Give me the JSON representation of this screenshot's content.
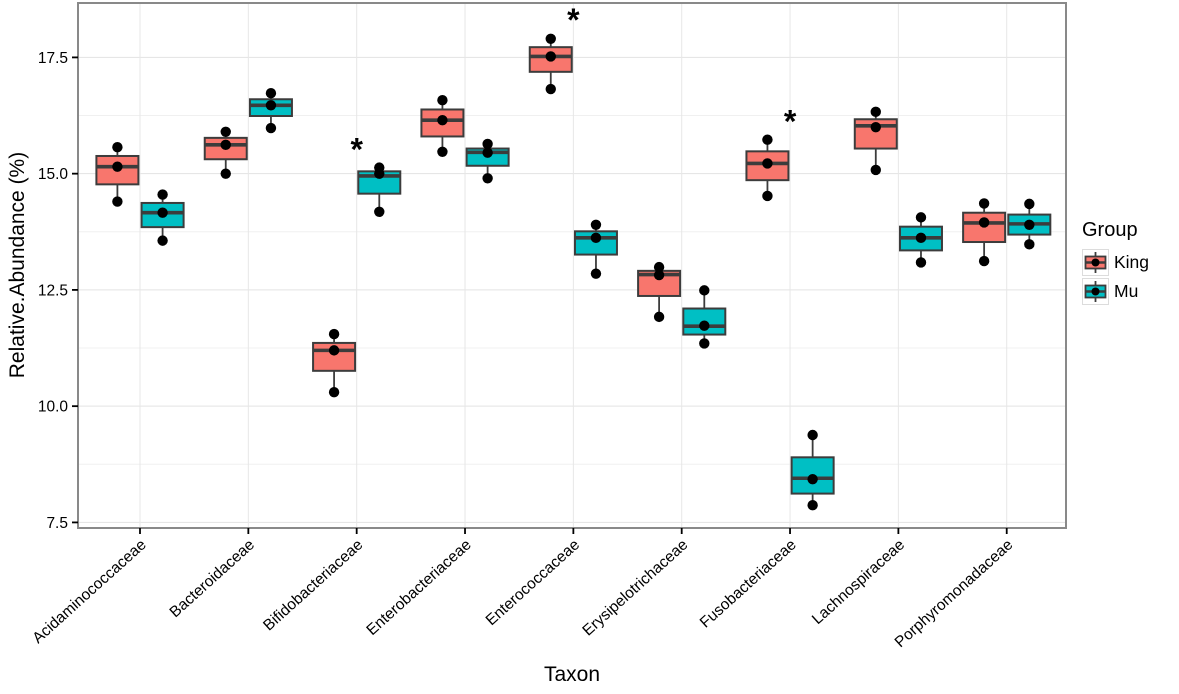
{
  "chart_data": {
    "type": "boxplot",
    "title": "",
    "xlabel": "Taxon",
    "ylabel": "Relative.Abundance (%)",
    "ylim": [
      7.38,
      18.67
    ],
    "ytick_values": [
      7.5,
      10.0,
      12.5,
      15.0,
      17.5
    ],
    "ytick_labels": [
      "7.5",
      "10.0",
      "12.5",
      "15.0",
      "17.5"
    ],
    "minor_gridlines": [
      8.75,
      11.25,
      13.75,
      16.25
    ],
    "grid": true,
    "legend_position": "right",
    "categories": [
      "Acidaminococcaceae",
      "Bacteroidaceae",
      "Bifidobacteriaceae",
      "Enterobacteriaceae",
      "Enterococcaceae",
      "Erysipelotrichaceae",
      "Fusobacteriaceae",
      "Lachnospiraceae",
      "Porphyromonadaceae"
    ],
    "legend": {
      "title": "Group",
      "entries": [
        {
          "label": "King",
          "color": "#F8766D"
        },
        {
          "label": "Mu",
          "color": "#00BFC4"
        }
      ]
    },
    "series": [
      {
        "name": "King",
        "color": "#F8766D",
        "boxes": [
          {
            "category": "Acidaminococcaceae",
            "min": 14.4,
            "q1": 14.77,
            "median": 15.15,
            "q3": 15.38,
            "max": 15.57,
            "points": [
              15.57,
              15.15,
              14.4
            ]
          },
          {
            "category": "Bacteroidaceae",
            "min": 15.0,
            "q1": 15.31,
            "median": 15.62,
            "q3": 15.77,
            "max": 15.9,
            "points": [
              15.9,
              15.62,
              15.0
            ]
          },
          {
            "category": "Bifidobacteriaceae",
            "min": 10.3,
            "q1": 10.76,
            "median": 11.2,
            "q3": 11.36,
            "max": 11.55,
            "points": [
              11.55,
              11.2,
              10.3
            ]
          },
          {
            "category": "Enterobacteriaceae",
            "min": 15.47,
            "q1": 15.8,
            "median": 16.15,
            "q3": 16.38,
            "max": 16.58,
            "points": [
              16.58,
              16.15,
              15.47
            ]
          },
          {
            "category": "Enterococcaceae",
            "min": 16.82,
            "q1": 17.19,
            "median": 17.52,
            "q3": 17.72,
            "max": 17.9,
            "points": [
              17.9,
              17.52,
              16.82
            ]
          },
          {
            "category": "Erysipelotrichaceae",
            "min": 11.92,
            "q1": 12.37,
            "median": 12.83,
            "q3": 12.91,
            "max": 12.99,
            "points": [
              12.99,
              12.82,
              11.92
            ]
          },
          {
            "category": "Fusobacteriaceae",
            "min": 14.52,
            "q1": 14.86,
            "median": 15.22,
            "q3": 15.48,
            "max": 15.73,
            "points": [
              15.73,
              15.22,
              14.52
            ]
          },
          {
            "category": "Lachnospiraceae",
            "min": 15.08,
            "q1": 15.54,
            "median": 16.03,
            "q3": 16.17,
            "max": 16.33,
            "points": [
              16.33,
              16.0,
              15.08
            ]
          },
          {
            "category": "Porphyromonadaceae",
            "min": 13.12,
            "q1": 13.53,
            "median": 13.94,
            "q3": 14.16,
            "max": 14.36,
            "points": [
              14.36,
              13.95,
              13.12
            ]
          }
        ]
      },
      {
        "name": "Mu",
        "color": "#00BFC4",
        "boxes": [
          {
            "category": "Acidaminococcaceae",
            "min": 13.56,
            "q1": 13.85,
            "median": 14.16,
            "q3": 14.37,
            "max": 14.55,
            "points": [
              14.55,
              14.16,
              13.56
            ]
          },
          {
            "category": "Bacteroidaceae",
            "min": 15.98,
            "q1": 16.24,
            "median": 16.47,
            "q3": 16.6,
            "max": 16.73,
            "points": [
              16.73,
              16.47,
              15.98
            ]
          },
          {
            "category": "Bifidobacteriaceae",
            "min": 14.18,
            "q1": 14.57,
            "median": 14.95,
            "q3": 15.05,
            "max": 15.15,
            "points": [
              15.13,
              15.0,
              14.18
            ]
          },
          {
            "category": "Enterobacteriaceae",
            "min": 14.9,
            "q1": 15.17,
            "median": 15.46,
            "q3": 15.54,
            "max": 15.64,
            "points": [
              15.64,
              15.45,
              14.9
            ]
          },
          {
            "category": "Enterococcaceae",
            "min": 12.85,
            "q1": 13.26,
            "median": 13.62,
            "q3": 13.76,
            "max": 13.9,
            "points": [
              13.9,
              13.62,
              12.85
            ]
          },
          {
            "category": "Erysipelotrichaceae",
            "min": 11.35,
            "q1": 11.54,
            "median": 11.72,
            "q3": 12.1,
            "max": 12.49,
            "points": [
              12.49,
              11.73,
              11.35
            ]
          },
          {
            "category": "Fusobacteriaceae",
            "min": 7.87,
            "q1": 8.12,
            "median": 8.45,
            "q3": 8.9,
            "max": 9.38,
            "points": [
              9.38,
              8.43,
              7.87
            ]
          },
          {
            "category": "Lachnospiraceae",
            "min": 13.09,
            "q1": 13.35,
            "median": 13.62,
            "q3": 13.86,
            "max": 14.06,
            "points": [
              14.06,
              13.62,
              13.09
            ]
          },
          {
            "category": "Porphyromonadaceae",
            "min": 13.48,
            "q1": 13.69,
            "median": 13.92,
            "q3": 14.12,
            "max": 14.35,
            "points": [
              14.35,
              13.9,
              13.48
            ]
          }
        ]
      }
    ],
    "significance_markers": [
      {
        "category": "Bifidobacteriaceae",
        "symbol": "*",
        "y": 15.5
      },
      {
        "category": "Enterococcaceae",
        "symbol": "*",
        "y": 18.28
      },
      {
        "category": "Fusobacteriaceae",
        "symbol": "*",
        "y": 16.1
      }
    ]
  },
  "style": {
    "king_color": "#F8766D",
    "mu_color": "#00BFC4",
    "box_outline": "#3c3c3c",
    "point_color": "#000000",
    "panel_border": "#898989",
    "grid_major": "#e3e3e3",
    "grid_minor": "#f0f0f0",
    "grid_vertical": "#e7e7e7",
    "background": "#ffffff"
  }
}
